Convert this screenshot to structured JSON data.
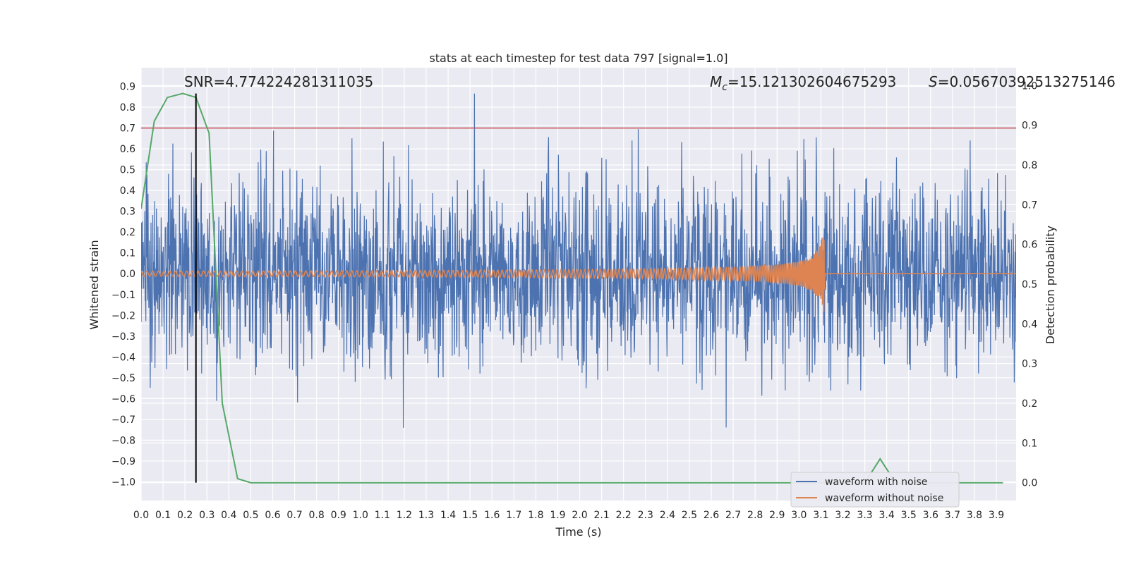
{
  "chart_data": {
    "type": "line",
    "title": "stats at each timestep for test data 797 [signal=1.0]",
    "xlabel": "Time (s)",
    "ylabel": "Whitened strain",
    "ylabel_right": "Detection probability",
    "xlim": [
      0.0,
      3.99
    ],
    "ylim": [
      -1.09,
      0.99
    ],
    "ylim_right": [
      -0.045,
      1.045
    ],
    "x_ticks": [
      0.0,
      0.1,
      0.2,
      0.3,
      0.4,
      0.5,
      0.6,
      0.7,
      0.8,
      0.9,
      1.0,
      1.1,
      1.2,
      1.3,
      1.4,
      1.5,
      1.6,
      1.7,
      1.8,
      1.9,
      2.0,
      2.1,
      2.2,
      2.3,
      2.4,
      2.5,
      2.6,
      2.7,
      2.8,
      2.9,
      3.0,
      3.1,
      3.2,
      3.3,
      3.4,
      3.5,
      3.6,
      3.7,
      3.8,
      3.9
    ],
    "x_tick_labels": [
      "0.0",
      "0.1",
      "0.2",
      "0.3",
      "0.4",
      "0.5",
      "0.6",
      "0.7",
      "0.8",
      "0.9",
      "1.0",
      "1.1",
      "1.2",
      "1.3",
      "1.4",
      "1.5",
      "1.6",
      "1.7",
      "1.8",
      "1.9",
      "2.0",
      "2.1",
      "2.2",
      "2.3",
      "2.4",
      "2.5",
      "2.6",
      "2.7",
      "2.8",
      "2.9",
      "3.0",
      "3.1",
      "3.2",
      "3.3",
      "3.4",
      "3.5",
      "3.6",
      "3.7",
      "3.8",
      "3.9"
    ],
    "y_ticks": [
      0.9,
      0.8,
      0.7,
      0.6,
      0.5,
      0.4,
      0.3,
      0.2,
      0.1,
      0.0,
      -0.1,
      -0.2,
      -0.3,
      -0.4,
      -0.5,
      -0.6,
      -0.7,
      -0.8,
      -0.9,
      -1.0
    ],
    "y_tick_labels": [
      "0.9",
      "0.8",
      "0.7",
      "0.6",
      "0.5",
      "0.4",
      "0.3",
      "0.2",
      "0.1",
      "0.0",
      "−0.1",
      "−0.2",
      "−0.3",
      "−0.4",
      "−0.5",
      "−0.6",
      "−0.7",
      "−0.8",
      "−0.9",
      "−1.0"
    ],
    "y_ticks_right": [
      1.0,
      0.9,
      0.8,
      0.7,
      0.6,
      0.5,
      0.4,
      0.3,
      0.2,
      0.1,
      0.0
    ],
    "y_tick_labels_right": [
      "1.0",
      "0.9",
      "0.8",
      "0.7",
      "0.6",
      "0.5",
      "0.4",
      "0.3",
      "0.2",
      "0.1",
      "0.0"
    ],
    "grid": true,
    "legend_position": "bottom-right",
    "series": [
      {
        "name": "waveform with noise",
        "color": "#4c72b0",
        "axis": "left",
        "kind": "noise",
        "t_range": [
          0.0,
          3.99
        ],
        "sigma": 0.23,
        "seed": 797
      },
      {
        "name": "waveform without noise",
        "color": "#dd8452",
        "axis": "left",
        "kind": "chirp",
        "t_range": [
          0.0,
          3.99
        ],
        "merger_time": 3.12,
        "amp_start": 0.012,
        "amp_peak": 0.22
      },
      {
        "name": "detection probability",
        "color": "#55a868",
        "axis": "right",
        "x": [
          0.0,
          0.06,
          0.12,
          0.19,
          0.25,
          0.31,
          0.37,
          0.44,
          0.5,
          0.56,
          0.62,
          0.69,
          3.3,
          3.37,
          3.44,
          3.5,
          3.93
        ],
        "y": [
          0.69,
          0.91,
          0.97,
          0.98,
          0.97,
          0.88,
          0.2,
          0.01,
          0.0,
          0.0,
          0.0,
          0.0,
          0.0,
          0.06,
          0.0,
          0.0,
          0.0
        ]
      }
    ],
    "hlines": [
      {
        "y": 0.7,
        "color": "#c44e52",
        "axis": "left"
      }
    ],
    "vlines": [
      {
        "x": 0.25,
        "color": "#000000",
        "axis": "right",
        "from": 0.0,
        "to": 0.98
      }
    ],
    "annotations": {
      "snr": "SNR=4.774224281311035",
      "mc_symbol": "M",
      "mc_sub": "c",
      "mc_value": "=15.121302604675293",
      "s_symbol": "S",
      "s_value": "=0.05670392513275146"
    }
  }
}
